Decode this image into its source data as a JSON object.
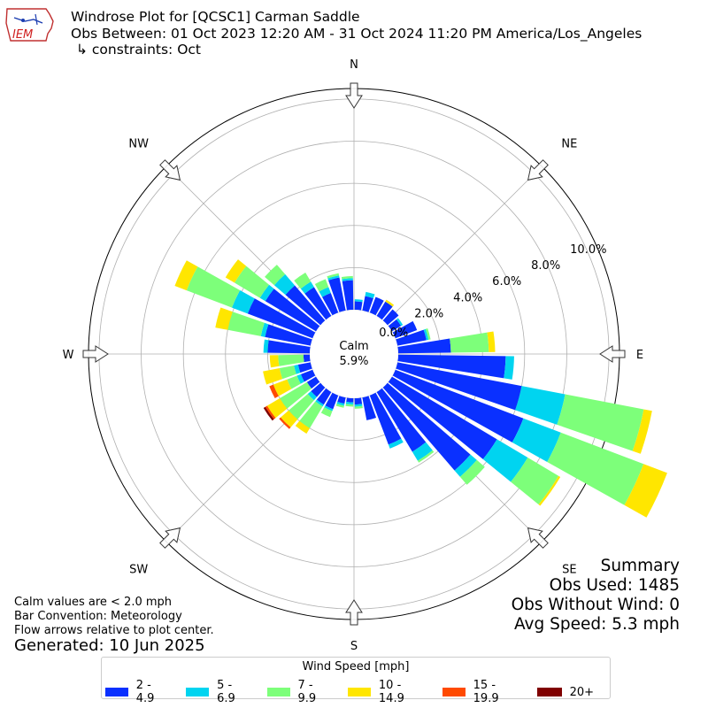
{
  "header": {
    "title_line1": "Windrose Plot for [QCSC1] Carman Saddle",
    "title_line2": "Obs Between: 01 Oct 2023 12:20 AM - 31 Oct 2024 11:20 PM America/Los_Angeles",
    "title_line3": "↳ constraints: Oct",
    "logo_text": "IEM"
  },
  "footer": {
    "note1": "Calm values are < 2.0 mph",
    "note2": "Bar Convention: Meteorology",
    "note3": "Flow arrows relative to plot center.",
    "generated": "Generated: 10 Jun 2025"
  },
  "summary": {
    "title": "Summary",
    "obs_used": "Obs Used: 1485",
    "obs_without_wind": "Obs Without Wind: 0",
    "avg_speed": "Avg Speed: 5.3 mph"
  },
  "legend": {
    "title": "Wind Speed [mph]",
    "items": [
      {
        "label": "2 - 4.9",
        "color": "#0a30ff"
      },
      {
        "label": "5 - 6.9",
        "color": "#00d4f0"
      },
      {
        "label": "7 - 9.9",
        "color": "#7dff7a"
      },
      {
        "label": "10 - 14.9",
        "color": "#ffe600"
      },
      {
        "label": "15 - 19.9",
        "color": "#ff4a00"
      },
      {
        "label": "20+",
        "color": "#800000"
      }
    ]
  },
  "chart_data": {
    "type": "windrose",
    "calm": {
      "label": "Calm",
      "value": "5.9%"
    },
    "radial_ticks": [
      "0.0%",
      "2.0%",
      "4.0%",
      "6.0%",
      "8.0%",
      "10.0%"
    ],
    "rmax": 10.5,
    "compass": [
      "N",
      "NE",
      "E",
      "SE",
      "S",
      "SW",
      "W",
      "NW"
    ],
    "bins": [
      "2 - 4.9",
      "5 - 6.9",
      "7 - 9.9",
      "10 - 14.9",
      "15 - 19.9",
      "20+"
    ],
    "sectors": [
      {
        "dir": 5,
        "values": [
          0.4,
          0.1,
          0.0,
          0.0,
          0.0,
          0.0
        ]
      },
      {
        "dir": 15,
        "values": [
          0.7,
          0.2,
          0.0,
          0.0,
          0.0,
          0.0
        ]
      },
      {
        "dir": 25,
        "values": [
          0.8,
          0.0,
          0.0,
          0.0,
          0.0,
          0.0
        ]
      },
      {
        "dir": 35,
        "values": [
          0.8,
          0.0,
          0.0,
          0.1,
          0.0,
          0.0
        ]
      },
      {
        "dir": 45,
        "values": [
          0.7,
          0.0,
          0.0,
          0.0,
          0.0,
          0.0
        ]
      },
      {
        "dir": 55,
        "values": [
          0.5,
          0.1,
          0.0,
          0.0,
          0.0,
          0.0
        ]
      },
      {
        "dir": 65,
        "values": [
          1.1,
          0.0,
          0.0,
          0.0,
          0.0,
          0.0
        ]
      },
      {
        "dir": 75,
        "values": [
          1.4,
          0.1,
          0.1,
          0.0,
          0.0,
          0.0
        ]
      },
      {
        "dir": 85,
        "values": [
          2.5,
          0.0,
          1.8,
          0.3,
          0.0,
          0.0
        ]
      },
      {
        "dir": 95,
        "values": [
          5.1,
          0.4,
          0.0,
          0.0,
          0.0,
          0.0
        ]
      },
      {
        "dir": 105,
        "values": [
          6.0,
          2.1,
          3.8,
          0.4,
          0.0,
          0.0
        ]
      },
      {
        "dir": 115,
        "values": [
          6.5,
          1.9,
          4.2,
          1.2,
          0.0,
          0.0
        ]
      },
      {
        "dir": 125,
        "values": [
          5.8,
          1.7,
          1.7,
          0.1,
          0.0,
          0.0
        ]
      },
      {
        "dir": 135,
        "values": [
          5.2,
          0.4,
          0.5,
          0.0,
          0.0,
          0.0
        ]
      },
      {
        "dir": 145,
        "values": [
          3.3,
          0.5,
          0.1,
          0.0,
          0.0,
          0.0
        ]
      },
      {
        "dir": 155,
        "values": [
          2.5,
          0.2,
          0.0,
          0.0,
          0.0,
          0.0
        ]
      },
      {
        "dir": 165,
        "values": [
          1.1,
          0.0,
          0.0,
          0.0,
          0.0,
          0.0
        ]
      },
      {
        "dir": 175,
        "values": [
          0.3,
          0.1,
          0.1,
          0.0,
          0.0,
          0.0
        ]
      },
      {
        "dir": 185,
        "values": [
          0.2,
          0.1,
          0.1,
          0.0,
          0.0,
          0.0
        ]
      },
      {
        "dir": 195,
        "values": [
          0.3,
          0.1,
          0.1,
          0.0,
          0.0,
          0.0
        ]
      },
      {
        "dir": 205,
        "values": [
          0.7,
          0.1,
          0.3,
          0.0,
          0.0,
          0.0
        ]
      },
      {
        "dir": 215,
        "values": [
          0.7,
          0.1,
          1.2,
          0.3,
          0.0,
          0.0
        ]
      },
      {
        "dir": 225,
        "values": [
          0.6,
          0.2,
          1.2,
          0.5,
          0.1,
          0.0
        ]
      },
      {
        "dir": 235,
        "values": [
          0.5,
          0.0,
          1.5,
          0.7,
          0.1,
          0.1
        ]
      },
      {
        "dir": 245,
        "values": [
          0.6,
          0.2,
          0.5,
          0.7,
          0.2,
          0.0
        ]
      },
      {
        "dir": 255,
        "values": [
          0.6,
          0.2,
          0.7,
          0.8,
          0.0,
          0.0
        ]
      },
      {
        "dir": 265,
        "values": [
          0.3,
          0.0,
          1.2,
          0.4,
          0.0,
          0.0
        ]
      },
      {
        "dir": 275,
        "values": [
          2.0,
          0.2,
          0.0,
          0.0,
          0.0,
          0.0
        ]
      },
      {
        "dir": 285,
        "values": [
          2.2,
          0.2,
          1.6,
          0.6,
          0.0,
          0.0
        ]
      },
      {
        "dir": 295,
        "values": [
          3.3,
          0.8,
          2.3,
          0.6,
          0.0,
          0.0
        ]
      },
      {
        "dir": 305,
        "values": [
          2.8,
          0.3,
          1.4,
          0.5,
          0.0,
          0.0
        ]
      },
      {
        "dir": 315,
        "values": [
          2.2,
          0.7,
          0.6,
          0.0,
          0.0,
          0.0
        ]
      },
      {
        "dir": 325,
        "values": [
          1.6,
          0.3,
          0.5,
          0.0,
          0.0,
          0.0
        ]
      },
      {
        "dir": 335,
        "values": [
          1.0,
          0.3,
          0.4,
          0.0,
          0.0,
          0.0
        ]
      },
      {
        "dir": 345,
        "values": [
          1.6,
          0.1,
          0.1,
          0.0,
          0.0,
          0.0
        ]
      },
      {
        "dir": 355,
        "values": [
          1.4,
          0.1,
          0.1,
          0.0,
          0.0,
          0.0
        ]
      }
    ]
  }
}
